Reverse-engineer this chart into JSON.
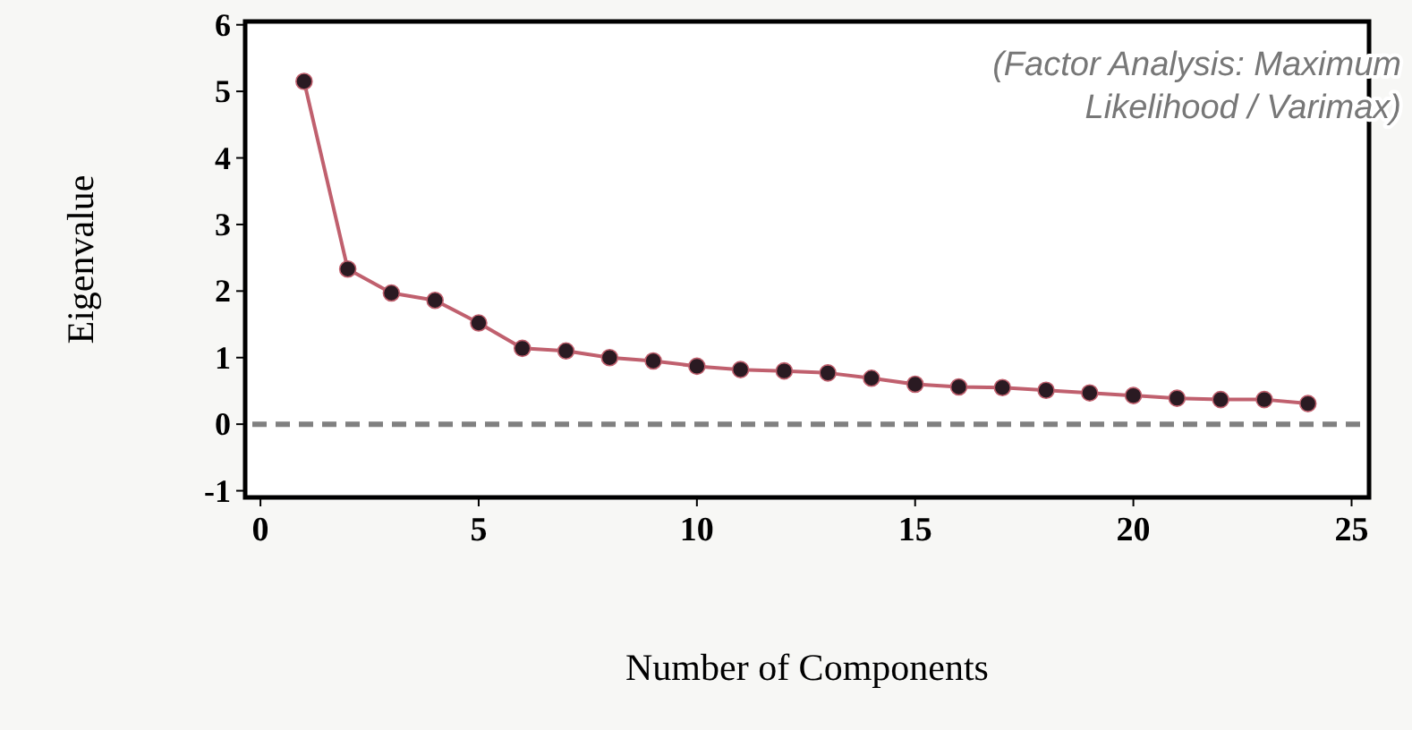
{
  "chart_data": {
    "type": "line",
    "xlabel": "Number of Components",
    "ylabel": "Eigenvalue",
    "x": [
      1,
      2,
      3,
      4,
      5,
      6,
      7,
      8,
      9,
      10,
      11,
      12,
      13,
      14,
      15,
      16,
      17,
      18,
      19,
      20,
      21,
      22,
      23,
      24
    ],
    "series": [
      {
        "color": "#c0606e",
        "values": [
          5.15,
          2.33,
          1.97,
          1.86,
          1.52,
          1.14,
          1.1,
          1.0,
          0.95,
          0.87,
          0.82,
          0.8,
          0.77,
          0.69,
          0.6,
          0.56,
          0.55,
          0.51,
          0.47,
          0.43,
          0.39,
          0.37,
          0.37,
          0.31
        ]
      }
    ],
    "marker": "circle",
    "line_style": "solid",
    "grid": false,
    "xlim": [
      -0.35,
      25.4
    ],
    "xticks": [
      0,
      5,
      10,
      15,
      20,
      25
    ],
    "ylim": [
      -1.1,
      6.05
    ],
    "yticks": [
      -1,
      0,
      1,
      2,
      3,
      4,
      5,
      6
    ],
    "ref_lines": [
      {
        "axis": "y",
        "value": 0,
        "color": "#808080",
        "line_style": "dashed"
      }
    ],
    "annotations": [
      "(Factor Analysis: Maximum\nLikelihood / Varimax)"
    ]
  }
}
